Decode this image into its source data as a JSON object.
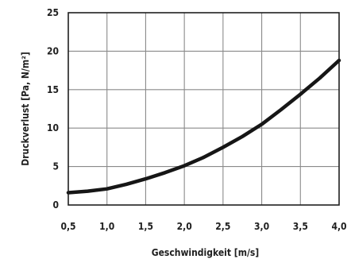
{
  "chart_data": {
    "type": "line",
    "title": "",
    "xlabel": "Geschwindigkeit [m/s]",
    "ylabel": "Druckverlust [Pa, N/m²]",
    "xlim": [
      0.5,
      4.0
    ],
    "ylim": [
      0,
      25
    ],
    "grid": true,
    "x_tick_labels": [
      "0,5",
      "1,0",
      "1,5",
      "2,0",
      "2,5",
      "3,0",
      "3,5",
      "4,0"
    ],
    "x_tick_values": [
      0.5,
      1.0,
      1.5,
      2.0,
      2.5,
      3.0,
      3.5,
      4.0
    ],
    "y_tick_labels": [
      "0",
      "5",
      "10",
      "15",
      "20",
      "25"
    ],
    "y_tick_values": [
      0,
      5,
      10,
      15,
      20,
      25
    ],
    "series": [
      {
        "x": [
          0.5,
          0.75,
          1.0,
          1.25,
          1.5,
          1.75,
          2.0,
          2.25,
          2.5,
          2.75,
          3.0,
          3.25,
          3.5,
          3.75,
          4.0
        ],
        "values": [
          1.6,
          1.8,
          2.1,
          2.7,
          3.4,
          4.2,
          5.1,
          6.2,
          7.5,
          8.9,
          10.5,
          12.4,
          14.4,
          16.5,
          18.8
        ]
      }
    ],
    "line_color": "#161616",
    "grid_color": "#8a8a8a"
  }
}
